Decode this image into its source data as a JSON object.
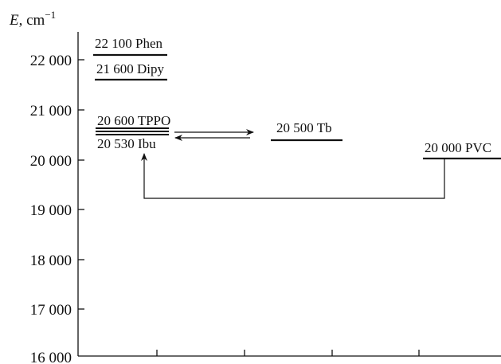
{
  "axis": {
    "symbol": "E",
    "unit": ", cm",
    "unit_exp": "−1",
    "ticks": [
      "22 000",
      "21 000",
      "20 000",
      "19 000",
      "18 000",
      "17 000",
      "16 000"
    ]
  },
  "levels": {
    "phen": "22 100 Phen",
    "dipy": "21 600 Dipy",
    "tppo": "20 600 TPPO",
    "ibu": "20 530 Ibu",
    "tb": "20 500 Tb",
    "pvc": "20 000 PVC"
  }
}
